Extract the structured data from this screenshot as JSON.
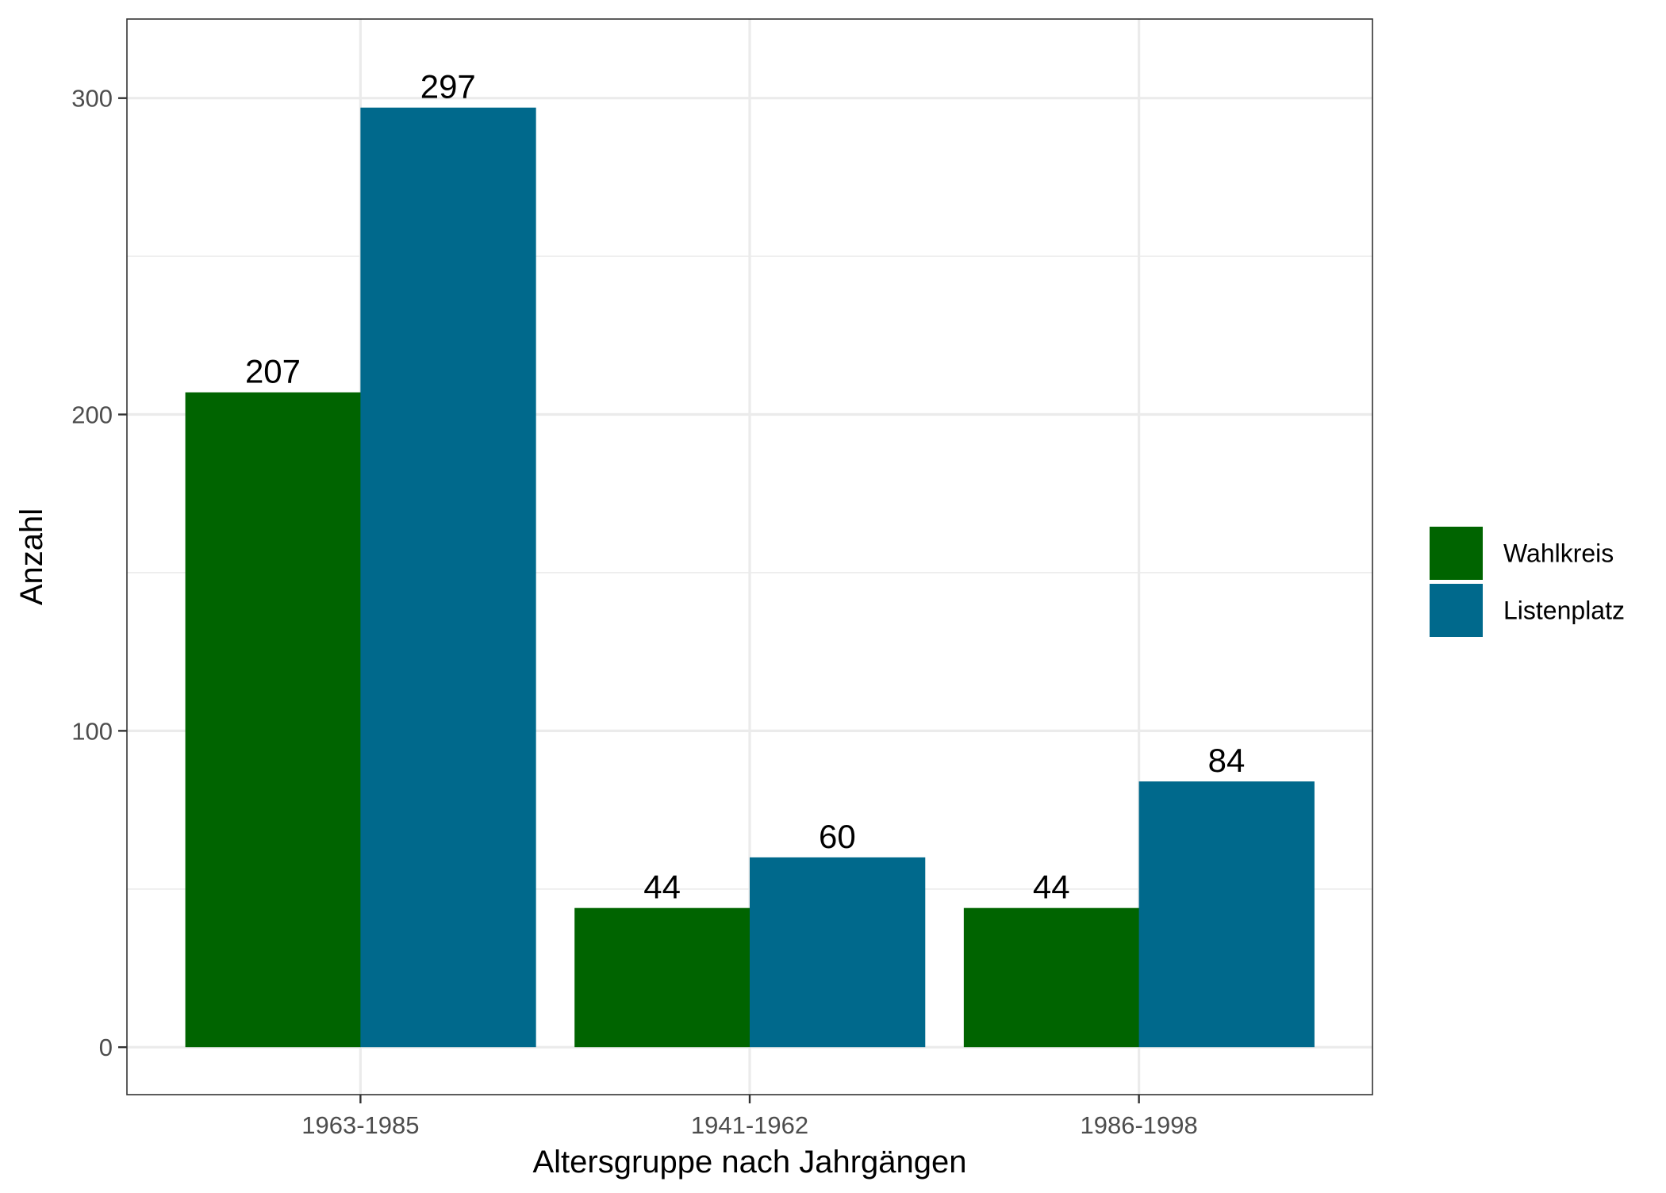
{
  "chart_data": {
    "type": "bar",
    "title": "",
    "xlabel": "Altersgruppe nach Jahrgängen",
    "ylabel": "Anzahl",
    "categories": [
      "1963-1985",
      "1941-1962",
      "1986-1998"
    ],
    "series": [
      {
        "name": "Wahlkreis",
        "values": [
          207,
          44,
          44
        ],
        "color": "#006400"
      },
      {
        "name": "Listenplatz",
        "values": [
          297,
          60,
          84
        ],
        "color": "#00698C"
      }
    ],
    "ylim": [
      -15,
      325
    ],
    "y_ticks": [
      0,
      100,
      200,
      300
    ],
    "grid": true,
    "legend_position": "right",
    "data_labels": true,
    "colors": {
      "panel_border": "#333333",
      "grid": "#EBEBEB",
      "tick_text": "#4D4D4D",
      "label_text": "#000000"
    }
  }
}
